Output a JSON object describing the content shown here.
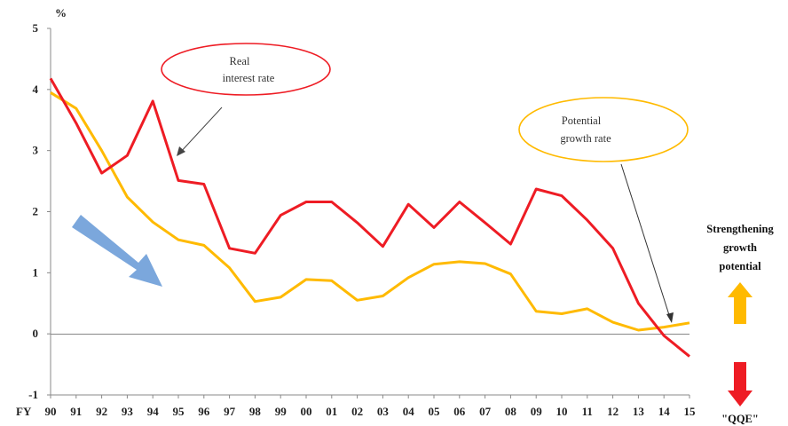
{
  "chart_data": {
    "type": "line",
    "ylabel": "%",
    "x_prefix_label": "FY",
    "categories": [
      "90",
      "91",
      "92",
      "93",
      "94",
      "95",
      "96",
      "97",
      "98",
      "99",
      "00",
      "01",
      "02",
      "03",
      "04",
      "05",
      "06",
      "07",
      "08",
      "09",
      "10",
      "11",
      "12",
      "13",
      "14",
      "15"
    ],
    "ylim": [
      -1,
      5
    ],
    "yticks": [
      -1,
      0,
      1,
      2,
      3,
      4,
      5
    ],
    "grid": false,
    "series": [
      {
        "name": "Real interest rate",
        "color": "#ee1c24",
        "values": [
          4.18,
          3.45,
          2.63,
          2.92,
          3.81,
          2.51,
          2.45,
          1.4,
          1.32,
          1.94,
          2.16,
          2.16,
          1.82,
          1.43,
          2.12,
          1.74,
          2.16,
          1.82,
          1.47,
          2.37,
          2.26,
          1.86,
          1.4,
          0.5,
          -0.03,
          -0.37
        ]
      },
      {
        "name": "Potential growth rate",
        "color": "#ffba00",
        "values": [
          3.95,
          3.69,
          3.0,
          2.24,
          1.83,
          1.54,
          1.45,
          1.08,
          0.53,
          0.6,
          0.89,
          0.87,
          0.55,
          0.62,
          0.92,
          1.14,
          1.18,
          1.15,
          0.98,
          0.37,
          0.33,
          0.41,
          0.19,
          0.06,
          0.11,
          0.18
        ]
      }
    ],
    "annotations": {
      "real_rate_label": [
        "Real",
        "interest rate"
      ],
      "potential_label": [
        "Potential",
        "growth rate"
      ],
      "up_label": [
        "Strengthening",
        "growth",
        "potential"
      ],
      "down_label": "\"QQE\""
    },
    "colors": {
      "big_arrow": "#7ba7dc",
      "up_arrow": "#ffba00",
      "down_arrow": "#ee1c24",
      "real_ellipse": "#ee1c24",
      "potential_ellipse": "#ffba00"
    }
  }
}
